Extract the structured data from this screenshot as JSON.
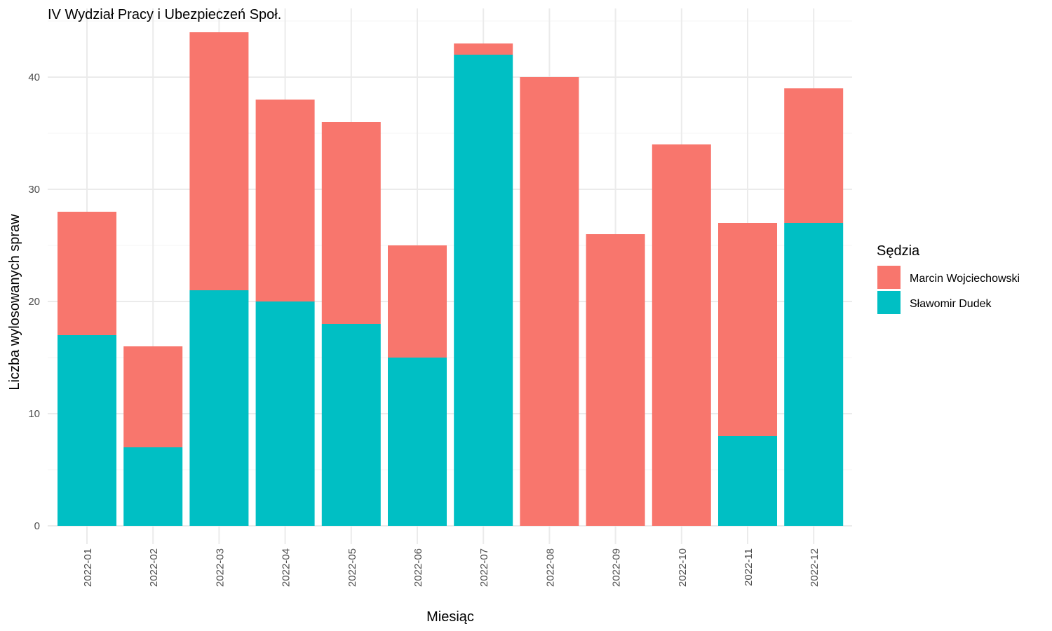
{
  "chart_data": {
    "type": "bar",
    "stacked": true,
    "title": "IV Wydział Pracy i Ubezpieczeń Społ.",
    "xlabel": "Miesiąc",
    "ylabel": "Liczba wylosowanych spraw",
    "ylim": [
      0,
      44
    ],
    "yticks": [
      0,
      10,
      20,
      30,
      40
    ],
    "grid": true,
    "legend": {
      "title": "Sędzia",
      "position": "right"
    },
    "categories": [
      "2022-01",
      "2022-02",
      "2022-03",
      "2022-04",
      "2022-05",
      "2022-06",
      "2022-07",
      "2022-08",
      "2022-09",
      "2022-10",
      "2022-11",
      "2022-12"
    ],
    "series": [
      {
        "name": "Marcin Wojciechowski",
        "color": "#F8766D",
        "values": [
          11,
          9,
          23,
          18,
          18,
          10,
          1,
          40,
          26,
          34,
          19,
          12
        ]
      },
      {
        "name": "Sławomir Dudek",
        "color": "#00BFC4",
        "values": [
          17,
          7,
          21,
          20,
          18,
          15,
          42,
          0,
          0,
          0,
          8,
          27
        ]
      }
    ]
  }
}
